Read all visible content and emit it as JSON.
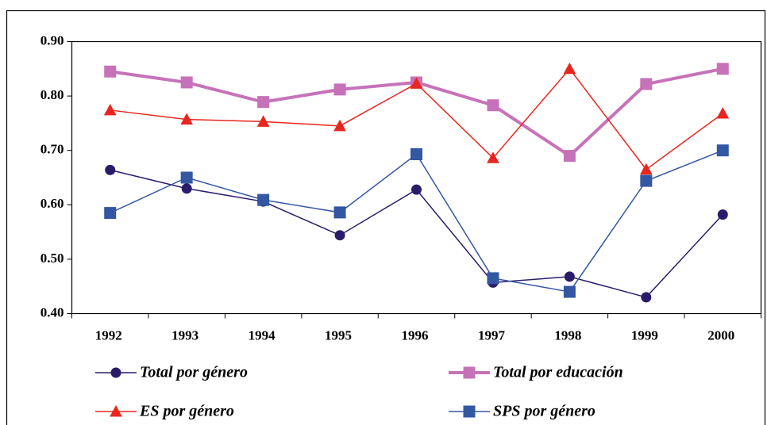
{
  "chart_data": {
    "type": "line",
    "categories": [
      "1992",
      "1993",
      "1994",
      "1995",
      "1996",
      "1997",
      "1998",
      "1999",
      "2000"
    ],
    "ylim": [
      0.4,
      0.9
    ],
    "yticks": [
      {
        "value": 0.4,
        "label": "0.40"
      },
      {
        "value": 0.5,
        "label": "0.50"
      },
      {
        "value": 0.6,
        "label": "0.60"
      },
      {
        "value": 0.7,
        "label": "0.70"
      },
      {
        "value": 0.8,
        "label": "0.80"
      },
      {
        "value": 0.9,
        "label": "0.90"
      }
    ],
    "grid": false,
    "series": [
      {
        "name": "Total por género",
        "color": "#2b1b6b",
        "marker": "circle",
        "line_width": 1.5,
        "values": [
          0.664,
          0.63,
          0.606,
          0.544,
          0.628,
          0.457,
          0.468,
          0.43,
          0.582
        ]
      },
      {
        "name": "Total por educación",
        "color": "#c672b8",
        "marker": "square",
        "line_width": 4,
        "values": [
          0.845,
          0.825,
          0.789,
          0.812,
          0.825,
          0.783,
          0.69,
          0.822,
          0.85
        ]
      },
      {
        "name": "ES por género",
        "color": "#e8261f",
        "marker": "triangle",
        "line_width": 1.5,
        "values": [
          0.774,
          0.757,
          0.753,
          0.745,
          0.823,
          0.686,
          0.85,
          0.665,
          0.768
        ]
      },
      {
        "name": "SPS por género",
        "color": "#3357a3",
        "marker": "square",
        "line_width": 1.5,
        "values": [
          0.585,
          0.65,
          0.609,
          0.586,
          0.693,
          0.465,
          0.44,
          0.644,
          0.7
        ]
      }
    ]
  }
}
